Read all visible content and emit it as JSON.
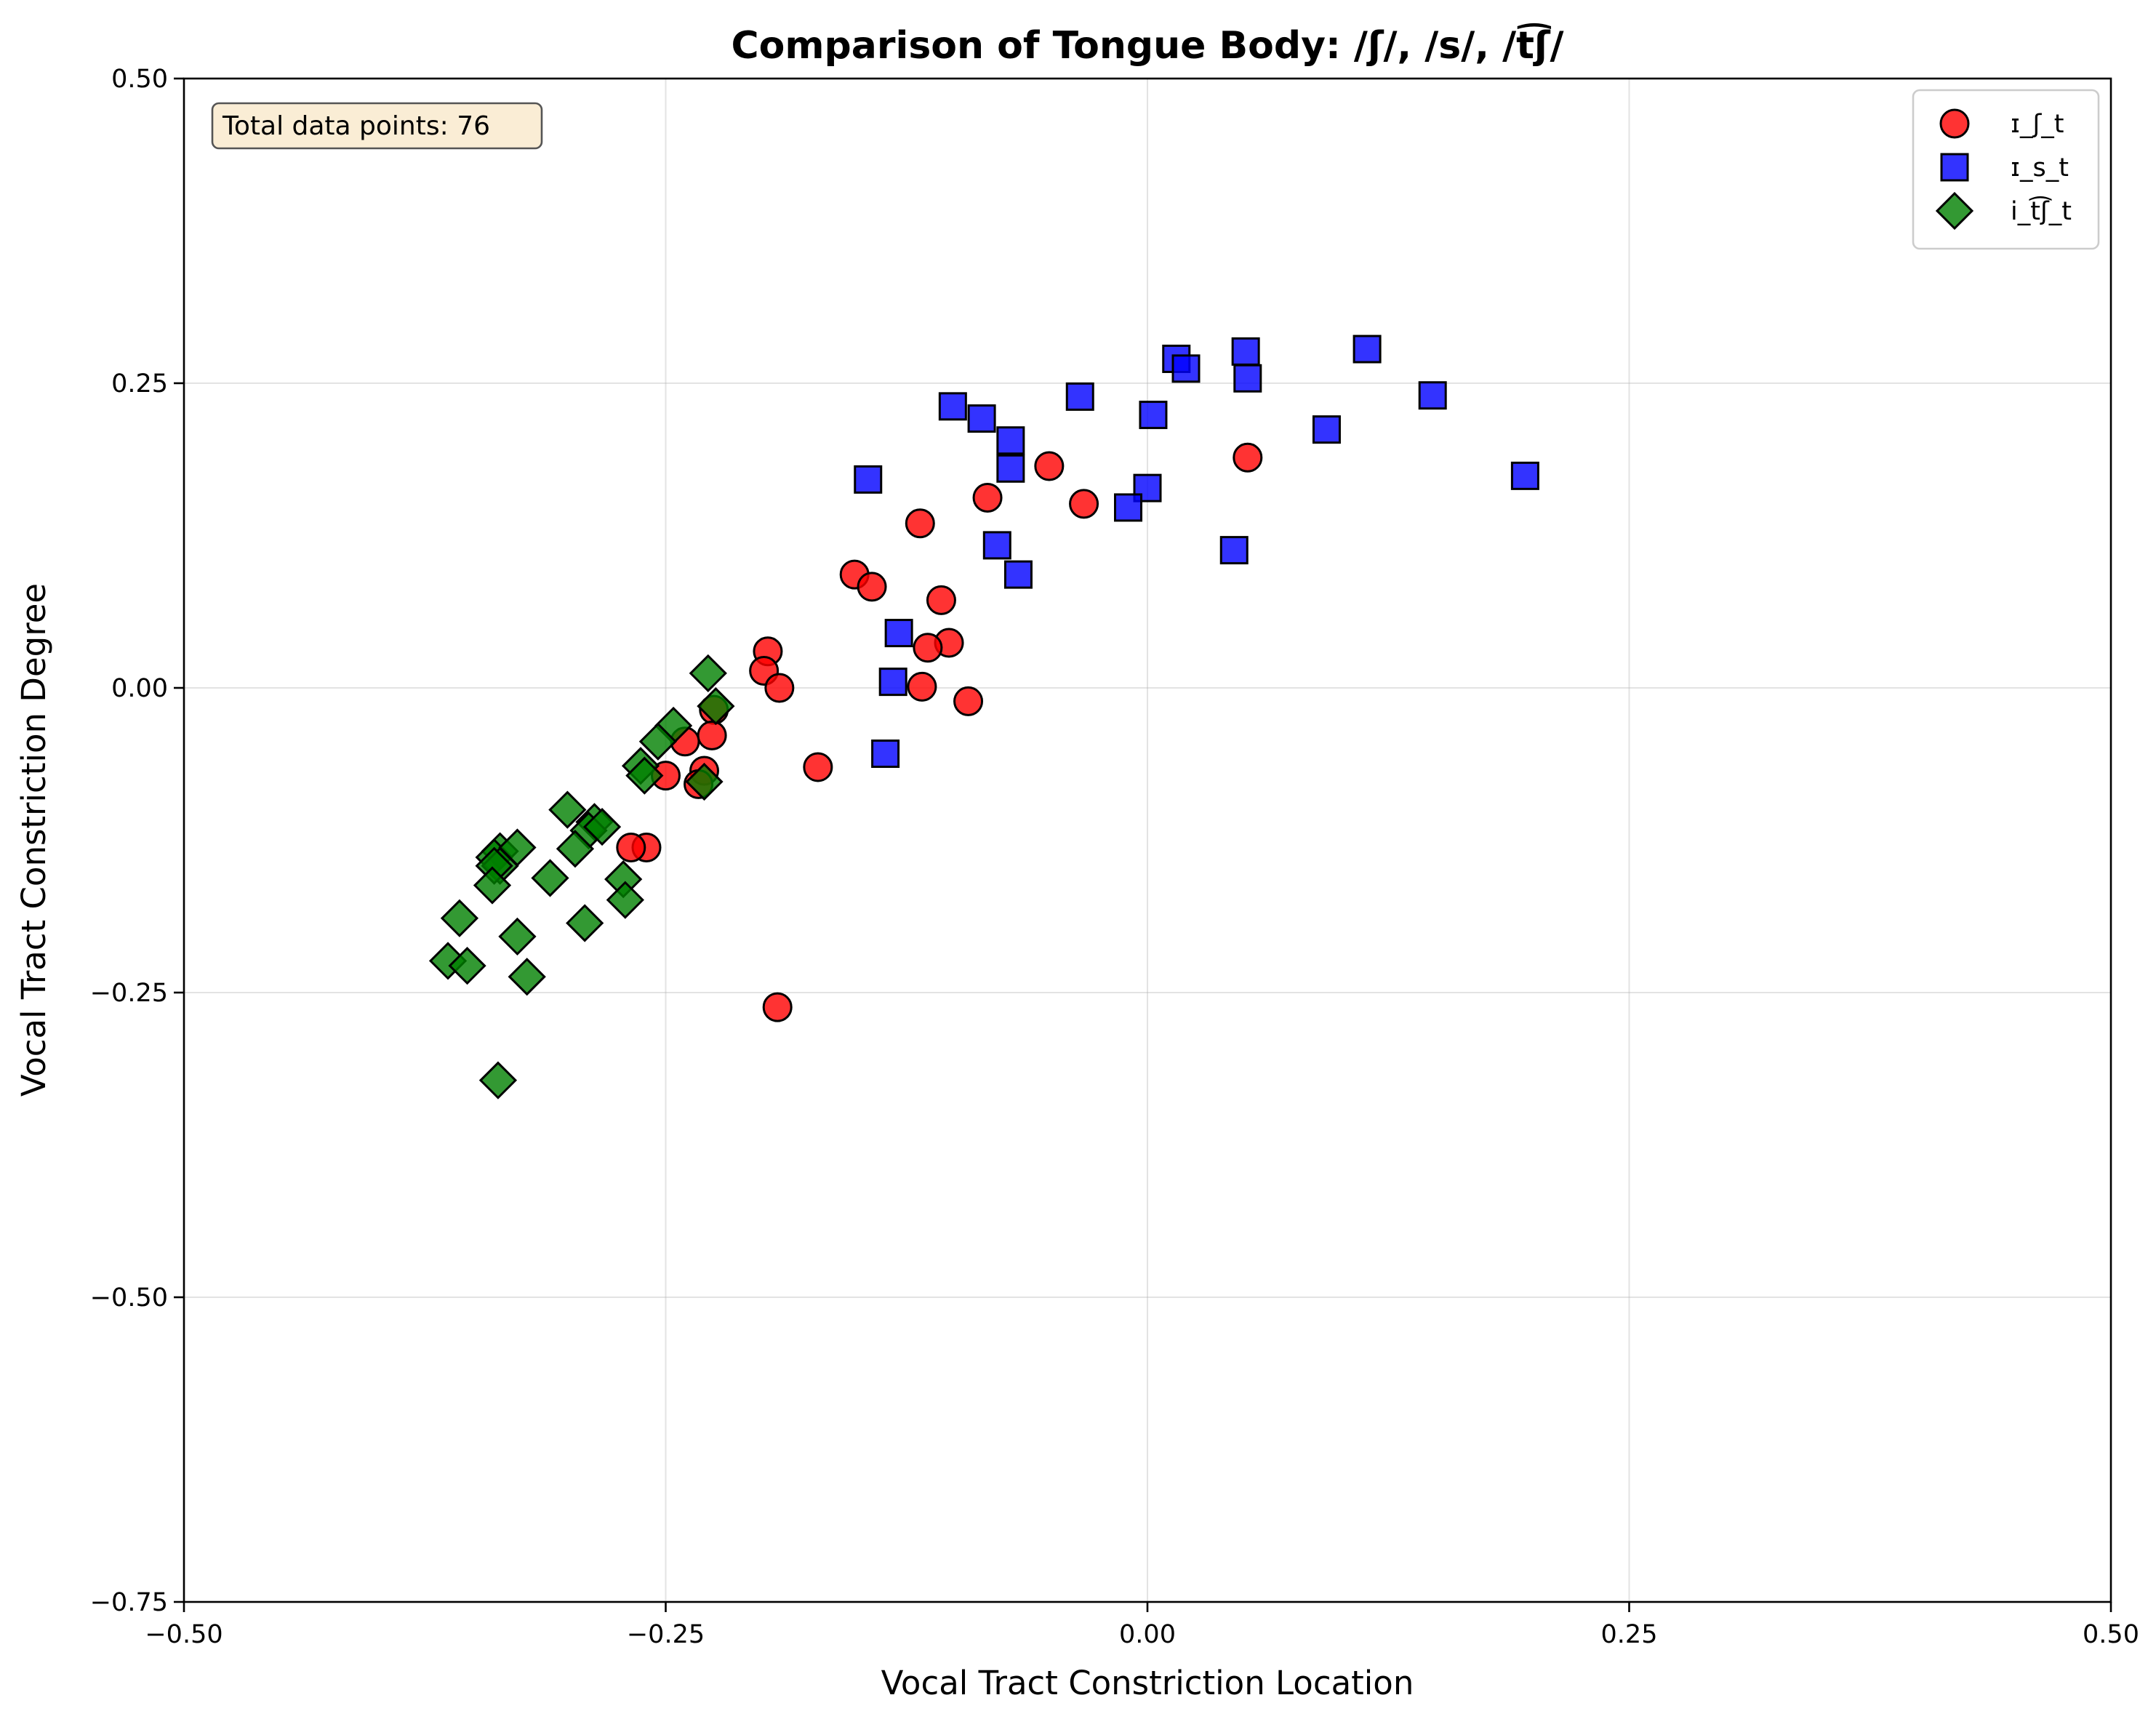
{
  "chart_data": {
    "type": "scatter",
    "title": "Comparison of Tongue Body: /ʃ/, /s/, /t͡ʃ/",
    "xlabel": "Vocal Tract Constriction Location",
    "ylabel": "Vocal Tract Constriction Degree",
    "xlim": [
      -0.5,
      0.5
    ],
    "ylim": [
      -0.75,
      0.5
    ],
    "xticks": [
      -0.5,
      -0.25,
      0.0,
      0.25,
      0.5
    ],
    "yticks": [
      -0.75,
      -0.5,
      -0.25,
      0.0,
      0.25,
      0.5
    ],
    "xtick_labels": [
      "−0.50",
      "−0.25",
      "0.00",
      "0.25",
      "0.50"
    ],
    "ytick_labels": [
      "−0.75",
      "−0.50",
      "−0.25",
      "0.00",
      "0.25",
      "0.50"
    ],
    "grid": true,
    "legend_position": "top-right",
    "annotation": "Total data points: 76",
    "series": [
      {
        "name": "ɪ_ʃ_t",
        "marker": "circle",
        "color": "#ff0000",
        "points": [
          [
            -0.051,
            0.182
          ],
          [
            0.052,
            0.189
          ],
          [
            -0.083,
            0.156
          ],
          [
            -0.033,
            0.151
          ],
          [
            -0.118,
            0.135
          ],
          [
            -0.152,
            0.093
          ],
          [
            -0.143,
            0.083
          ],
          [
            -0.107,
            0.072
          ],
          [
            -0.103,
            0.037
          ],
          [
            -0.114,
            0.033
          ],
          [
            -0.197,
            0.03
          ],
          [
            -0.199,
            0.014
          ],
          [
            -0.191,
            0.0
          ],
          [
            -0.117,
            0.001
          ],
          [
            -0.093,
            -0.011
          ],
          [
            -0.225,
            -0.018
          ],
          [
            -0.226,
            -0.039
          ],
          [
            -0.24,
            -0.044
          ],
          [
            -0.23,
            -0.068
          ],
          [
            -0.233,
            -0.079
          ],
          [
            -0.25,
            -0.072
          ],
          [
            -0.171,
            -0.065
          ],
          [
            -0.26,
            -0.131
          ],
          [
            -0.268,
            -0.131
          ],
          [
            -0.192,
            -0.262
          ]
        ]
      },
      {
        "name": "ɪ_s_t",
        "marker": "square",
        "color": "#0000ff",
        "points": [
          [
            0.114,
            0.278
          ],
          [
            0.051,
            0.276
          ],
          [
            0.015,
            0.27
          ],
          [
            0.02,
            0.262
          ],
          [
            0.052,
            0.254
          ],
          [
            -0.035,
            0.239
          ],
          [
            0.148,
            0.24
          ],
          [
            -0.101,
            0.231
          ],
          [
            0.003,
            0.224
          ],
          [
            -0.086,
            0.221
          ],
          [
            0.093,
            0.212
          ],
          [
            -0.071,
            0.203
          ],
          [
            -0.071,
            0.18
          ],
          [
            0.196,
            0.174
          ],
          [
            -0.145,
            0.171
          ],
          [
            0.0,
            0.164
          ],
          [
            -0.01,
            0.148
          ],
          [
            -0.078,
            0.117
          ],
          [
            0.045,
            0.113
          ],
          [
            -0.067,
            0.093
          ],
          [
            -0.129,
            0.045
          ],
          [
            -0.132,
            0.005
          ],
          [
            -0.136,
            -0.054
          ]
        ]
      },
      {
        "name": "i_t͡ʃ_t",
        "marker": "diamond",
        "color": "#008000",
        "points": [
          [
            -0.228,
            0.012
          ],
          [
            -0.224,
            -0.015
          ],
          [
            -0.246,
            -0.031
          ],
          [
            -0.254,
            -0.044
          ],
          [
            -0.263,
            -0.064
          ],
          [
            -0.261,
            -0.072
          ],
          [
            -0.23,
            -0.077
          ],
          [
            -0.301,
            -0.1
          ],
          [
            -0.287,
            -0.11
          ],
          [
            -0.29,
            -0.117
          ],
          [
            -0.283,
            -0.114
          ],
          [
            -0.297,
            -0.132
          ],
          [
            -0.336,
            -0.134
          ],
          [
            -0.339,
            -0.139
          ],
          [
            -0.336,
            -0.146
          ],
          [
            -0.327,
            -0.131
          ],
          [
            -0.339,
            -0.146
          ],
          [
            -0.31,
            -0.156
          ],
          [
            -0.272,
            -0.157
          ],
          [
            -0.271,
            -0.174
          ],
          [
            -0.34,
            -0.162
          ],
          [
            -0.357,
            -0.189
          ],
          [
            -0.292,
            -0.193
          ],
          [
            -0.327,
            -0.204
          ],
          [
            -0.363,
            -0.224
          ],
          [
            -0.353,
            -0.228
          ],
          [
            -0.322,
            -0.237
          ],
          [
            -0.337,
            -0.322
          ]
        ]
      }
    ]
  }
}
